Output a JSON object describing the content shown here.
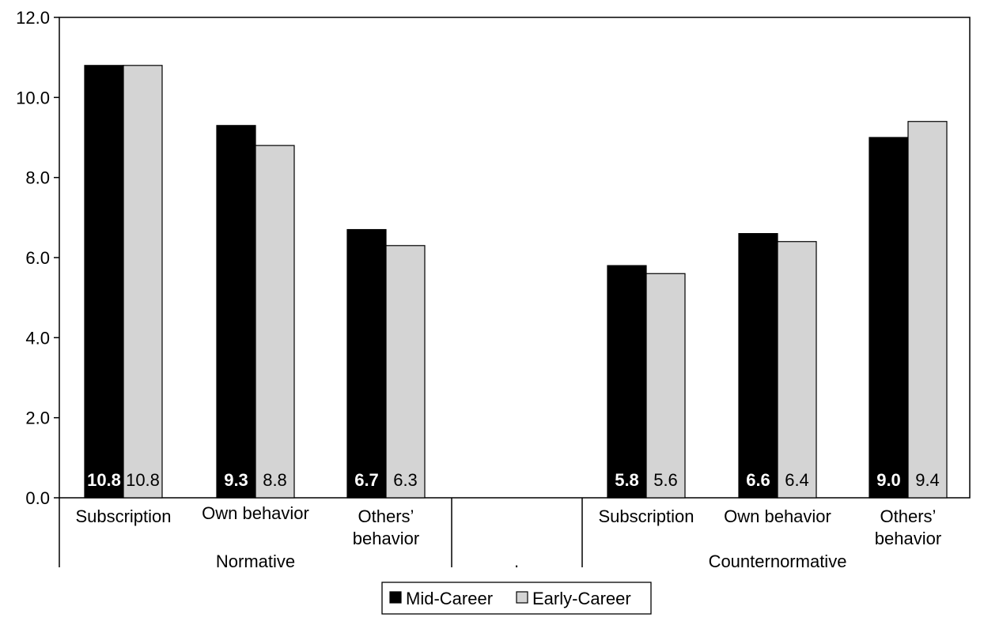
{
  "colors": {
    "series_1": "#000000",
    "series_2": "#d4d4d4",
    "axis": "#000000",
    "bar_label_on_dark": "#ffffff",
    "bar_label_on_light": "#000000"
  },
  "chart_data": {
    "type": "bar",
    "ylim": [
      0,
      12
    ],
    "y_ticks": [
      "0.0",
      "2.0",
      "4.0",
      "6.0",
      "8.0",
      "10.0",
      "12.0"
    ],
    "grid": false,
    "legend_position": "bottom-center",
    "categories": [
      "Subscription",
      "Own behavior",
      "Others’ behavior",
      "",
      "Subscription",
      "Own behavior",
      "Others’ behavior"
    ],
    "groups": [
      {
        "label": "Normative",
        "categories": [
          "Subscription",
          "Own behavior",
          "Others’ behavior"
        ]
      },
      {
        "label": ".",
        "categories": []
      },
      {
        "label": "Counternormative",
        "categories": [
          "Subscription",
          "Own behavior",
          "Others’ behavior"
        ]
      }
    ],
    "series": [
      {
        "name": "Mid-Career",
        "values": [
          10.8,
          9.3,
          6.7,
          null,
          5.8,
          6.6,
          9.0
        ],
        "labels": [
          "10.8",
          "9.3",
          "6.7",
          "",
          "5.8",
          "6.6",
          "9.0"
        ]
      },
      {
        "name": "Early-Career",
        "values": [
          10.8,
          8.8,
          6.3,
          null,
          5.6,
          6.4,
          9.4
        ],
        "labels": [
          "10.8",
          "8.8",
          "6.3",
          "",
          "5.6",
          "6.4",
          "9.4"
        ]
      }
    ]
  }
}
